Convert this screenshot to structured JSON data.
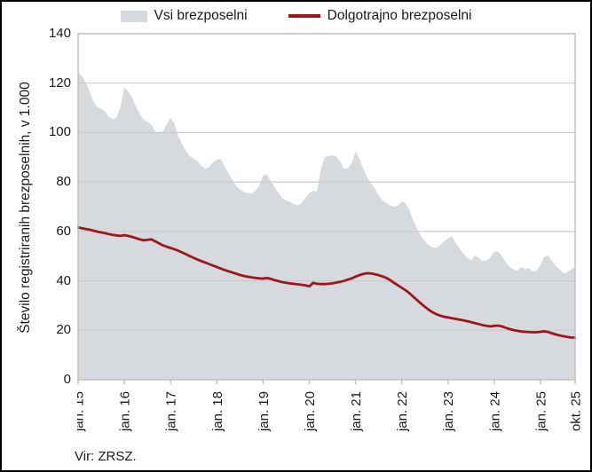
{
  "source_note": "Vir: ZRSZ.",
  "chart_data": {
    "type": "area",
    "title": "",
    "xlabel": "",
    "ylabel": "Število registriranih brezposelnih, v 1.000",
    "ylim": [
      0,
      140
    ],
    "yticks": [
      0,
      20,
      40,
      60,
      80,
      100,
      120,
      140
    ],
    "grid": "horizontal",
    "legend_position": "top-center",
    "x_unit": "monthly, jan. 2015 – okt. 2025",
    "x_ticks": [
      {
        "index": 0,
        "label": "jan. 15"
      },
      {
        "index": 12,
        "label": "jan. 16"
      },
      {
        "index": 24,
        "label": "jan. 17"
      },
      {
        "index": 36,
        "label": "jan. 18"
      },
      {
        "index": 48,
        "label": "jan. 19"
      },
      {
        "index": 60,
        "label": "jan. 20"
      },
      {
        "index": 72,
        "label": "jan. 21"
      },
      {
        "index": 84,
        "label": "jan. 22"
      },
      {
        "index": 96,
        "label": "jan. 23"
      },
      {
        "index": 108,
        "label": "jan. 24"
      },
      {
        "index": 120,
        "label": "jan. 25"
      },
      {
        "index": 129,
        "label": "okt. 25"
      }
    ],
    "colors": {
      "gridline": "#C9CBCD",
      "plot_border": "#BFBFBF",
      "text": "#1A1A1A"
    },
    "series": [
      {
        "name": "Vsi brezposelni",
        "type": "area",
        "color": "#D6D9DD",
        "values": [
          124.3,
          122.8,
          120.2,
          116.6,
          112.5,
          110.2,
          109.6,
          108.6,
          106.3,
          105.3,
          106.2,
          110.5,
          118.2,
          116.7,
          114.1,
          110.6,
          107.3,
          105.2,
          104.4,
          103.1,
          100.4,
          99.7,
          100.4,
          103.2,
          105.9,
          103.6,
          98.5,
          95.5,
          92.5,
          90.5,
          89.5,
          88.5,
          86.5,
          85.5,
          86.0,
          88.0,
          88.9,
          89.3,
          86.5,
          83.5,
          81.0,
          78.5,
          77.0,
          76.0,
          75.5,
          75.3,
          76.5,
          78.5,
          82.5,
          83.1,
          80.5,
          78.0,
          75.5,
          73.5,
          72.5,
          72.0,
          71.0,
          70.5,
          71.5,
          73.5,
          75.5,
          76.5,
          76.0,
          85.0,
          90.0,
          90.5,
          90.8,
          90.3,
          88.5,
          85.5,
          85.5,
          87.5,
          92.4,
          89.5,
          85.4,
          82.0,
          79.5,
          77.5,
          74.5,
          72.5,
          71.5,
          70.5,
          70.0,
          70.5,
          72.0,
          71.5,
          68.5,
          64.5,
          61.0,
          58.0,
          56.0,
          54.5,
          53.5,
          53.3,
          54.5,
          56.0,
          57.2,
          57.9,
          55.5,
          53.0,
          51.0,
          49.3,
          48.3,
          50.2,
          49.3,
          47.9,
          48.3,
          49.5,
          51.8,
          51.9,
          50.0,
          47.5,
          45.8,
          44.5,
          44.2,
          45.5,
          44.8,
          45.2,
          43.8,
          44.0,
          46.5,
          49.8,
          50.2,
          48.0,
          46.0,
          44.6,
          43.0,
          43.5,
          44.8,
          45.5
        ]
      },
      {
        "name": "Dolgotrajno brezposelni",
        "type": "line",
        "color": "#9E161B",
        "values": [
          61.6,
          61.3,
          61.0,
          60.7,
          60.3,
          59.9,
          59.6,
          59.3,
          58.9,
          58.6,
          58.4,
          58.2,
          58.5,
          58.2,
          57.8,
          57.3,
          56.8,
          56.4,
          56.6,
          56.8,
          56.0,
          55.2,
          54.4,
          53.8,
          53.3,
          52.8,
          52.2,
          51.5,
          50.8,
          50.0,
          49.3,
          48.6,
          48.0,
          47.4,
          46.8,
          46.2,
          45.6,
          45.0,
          44.4,
          43.9,
          43.4,
          42.9,
          42.4,
          42.0,
          41.7,
          41.4,
          41.2,
          41.0,
          40.9,
          41.2,
          40.8,
          40.3,
          39.9,
          39.5,
          39.2,
          39.0,
          38.8,
          38.6,
          38.4,
          38.2,
          37.8,
          39.2,
          38.8,
          38.7,
          38.7,
          38.8,
          39.0,
          39.3,
          39.6,
          40.0,
          40.5,
          41.0,
          41.7,
          42.3,
          42.8,
          43.1,
          43.0,
          42.7,
          42.3,
          41.8,
          41.2,
          40.3,
          39.2,
          38.2,
          37.2,
          36.2,
          35.0,
          33.6,
          32.2,
          30.8,
          29.5,
          28.3,
          27.3,
          26.5,
          25.9,
          25.5,
          25.2,
          24.9,
          24.6,
          24.3,
          24.0,
          23.7,
          23.3,
          22.9,
          22.5,
          22.1,
          21.8,
          21.6,
          21.8,
          21.9,
          21.6,
          21.0,
          20.5,
          20.1,
          19.8,
          19.5,
          19.4,
          19.3,
          19.2,
          19.2,
          19.4,
          19.6,
          19.3,
          18.8,
          18.3,
          17.9,
          17.6,
          17.3,
          17.1,
          17.0
        ]
      }
    ]
  }
}
